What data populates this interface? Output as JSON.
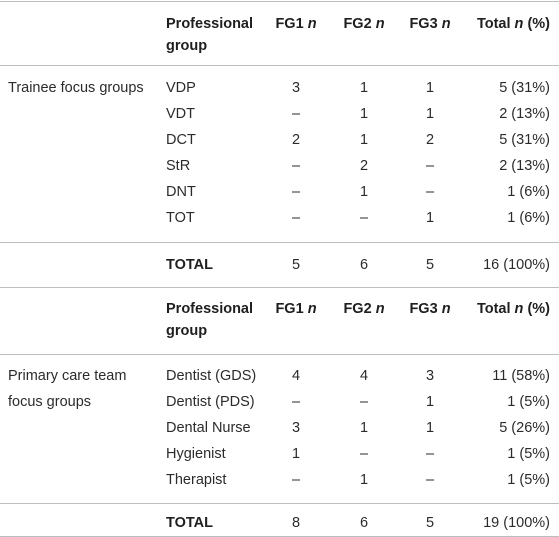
{
  "sections": [
    {
      "header": {
        "group_l1": "Professional",
        "group_l2": "group",
        "fg1": "FG1",
        "fg2": "FG2",
        "fg3": "FG3",
        "total": "Total",
        "n": "n",
        "pct": "(%)"
      },
      "category": "Trainee focus groups",
      "rows": [
        {
          "group": "VDP",
          "fg1": "3",
          "fg2": "1",
          "fg3": "1",
          "total": "5 (31%)"
        },
        {
          "group": "VDT",
          "fg1": "–",
          "fg2": "1",
          "fg3": "1",
          "total": "2 (13%)"
        },
        {
          "group": "DCT",
          "fg1": "2",
          "fg2": "1",
          "fg3": "2",
          "total": "5 (31%)"
        },
        {
          "group": "StR",
          "fg1": "–",
          "fg2": "2",
          "fg3": "–",
          "total": "2 (13%)"
        },
        {
          "group": "DNT",
          "fg1": "–",
          "fg2": "1",
          "fg3": "–",
          "total": "1 (6%)"
        },
        {
          "group": "TOT",
          "fg1": "–",
          "fg2": "–",
          "fg3": "1",
          "total": "1 (6%)"
        }
      ],
      "total_row": {
        "label": "TOTAL",
        "fg1": "5",
        "fg2": "6",
        "fg3": "5",
        "total": "16 (100%)"
      }
    },
    {
      "header": {
        "group_l1": "Professional",
        "group_l2": "group",
        "fg1": "FG1",
        "fg2": "FG2",
        "fg3": "FG3",
        "total": "Total",
        "n": "n",
        "pct": "(%)"
      },
      "category_l1": "Primary care team",
      "category_l2": "focus groups",
      "rows": [
        {
          "group": "Dentist (GDS)",
          "fg1": "4",
          "fg2": "4",
          "fg3": "3",
          "total": "11 (58%)"
        },
        {
          "group": "Dentist (PDS)",
          "fg1": "–",
          "fg2": "–",
          "fg3": "1",
          "total": "1 (5%)"
        },
        {
          "group": "Dental Nurse",
          "fg1": "3",
          "fg2": "1",
          "fg3": "1",
          "total": "5 (26%)"
        },
        {
          "group": "Hygienist",
          "fg1": "1",
          "fg2": "–",
          "fg3": "–",
          "total": "1 (5%)"
        },
        {
          "group": "Therapist",
          "fg1": "–",
          "fg2": "1",
          "fg3": "–",
          "total": "1 (5%)"
        }
      ],
      "total_row": {
        "label": "TOTAL",
        "fg1": "8",
        "fg2": "6",
        "fg3": "5",
        "total": "19 (100%)"
      }
    }
  ]
}
